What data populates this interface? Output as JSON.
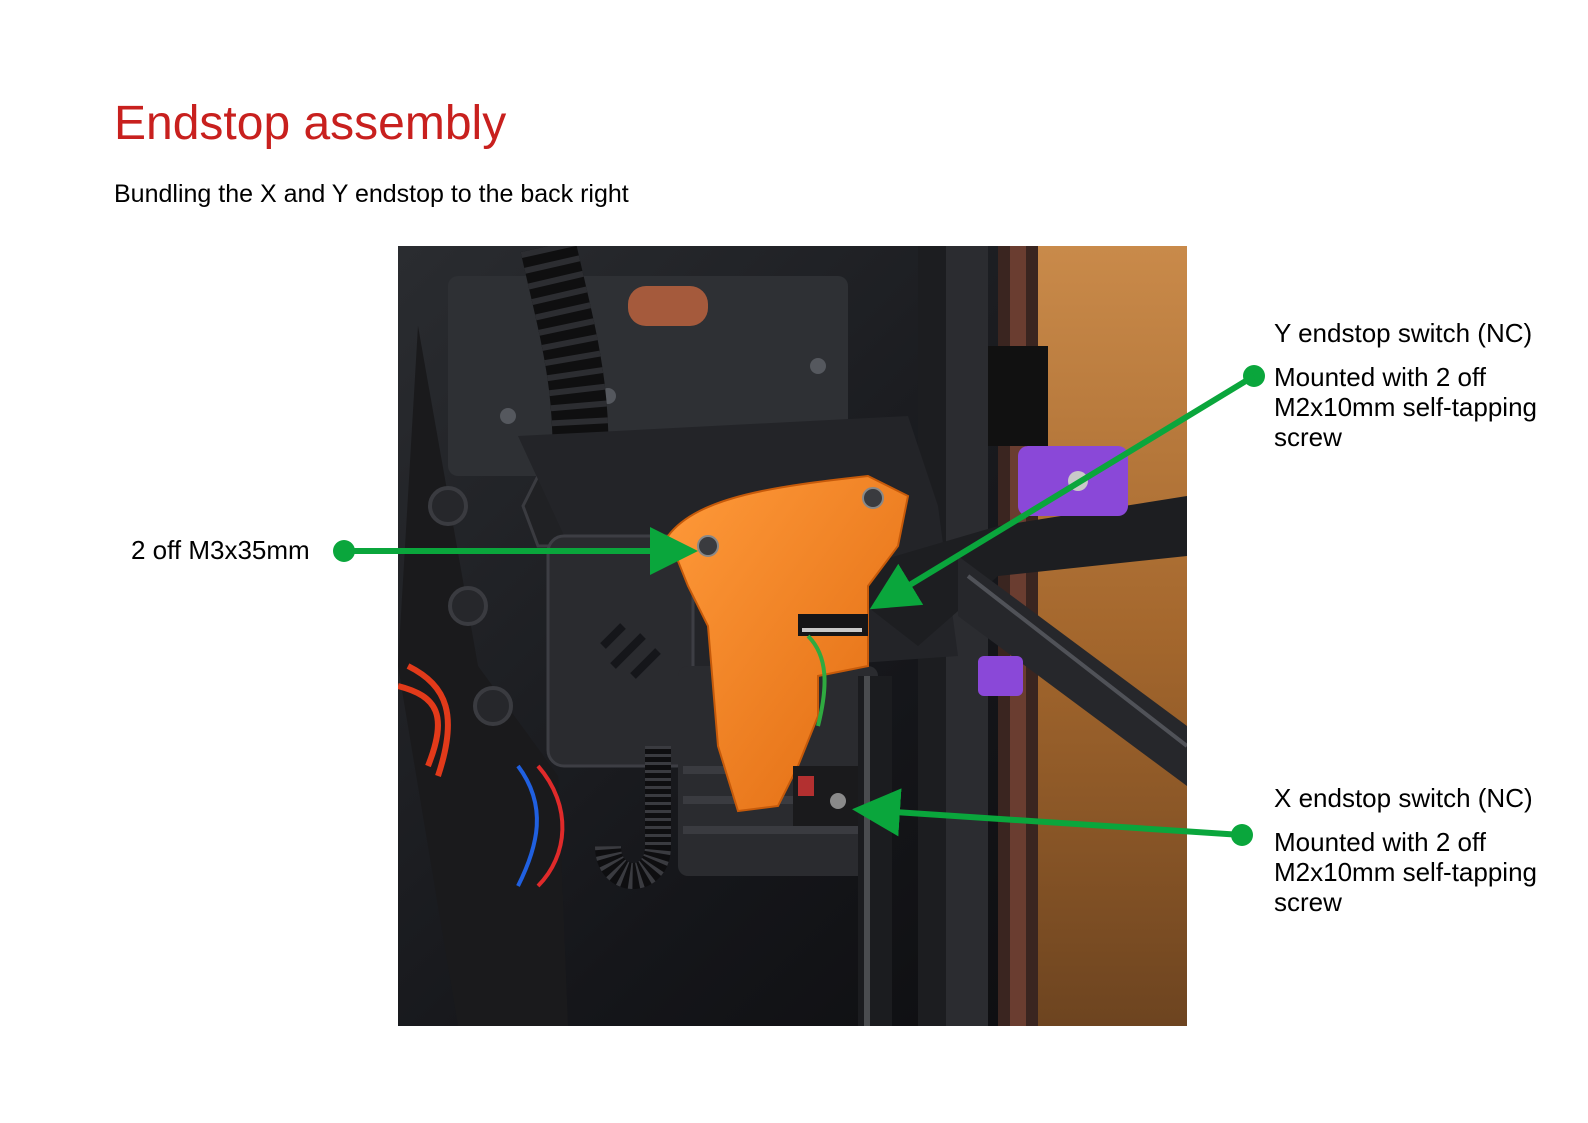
{
  "page": {
    "title": "Endstop assembly",
    "subtitle": "Bundling the X and Y endstop to the back right"
  },
  "callouts": {
    "screws": {
      "label": "2 off M3x35mm"
    },
    "y_endstop": {
      "heading": "Y endstop switch (NC)",
      "line1": "Mounted with 2 off",
      "line2": "M2x10mm self-tapping",
      "line3": "screw"
    },
    "x_endstop": {
      "heading": "X endstop switch (NC)",
      "line1": "Mounted with 2 off",
      "line2": "M2x10mm self-tapping",
      "line3": "screw"
    }
  },
  "colors": {
    "title": "#c8201e",
    "arrow": "#0aa63c",
    "part_orange": "#f07f1e",
    "part_purple": "#8a48d8"
  }
}
